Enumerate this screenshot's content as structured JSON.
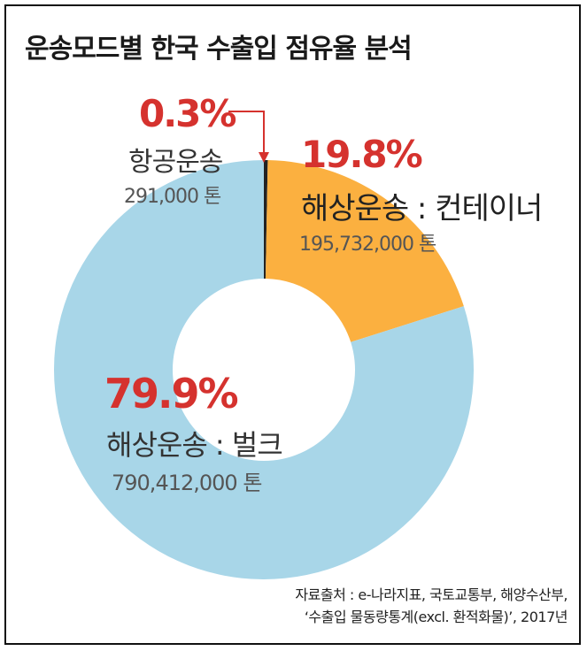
{
  "title": "운송모드별 한국 수출입 점유율 분석",
  "chart_data": {
    "type": "pie",
    "subtype": "donut",
    "slices": [
      {
        "label": "항공운송",
        "percent": 0.3,
        "value_text": "291,000 톤",
        "color": "#222222"
      },
      {
        "label": "해상운송 : 컨테이너",
        "percent": 19.8,
        "value_text": "195,732,000 톤",
        "color": "#fbb040"
      },
      {
        "label": "해상운송 : 벌크",
        "percent": 79.9,
        "value_text": "790,412,000 톤",
        "color": "#a8d6e8"
      }
    ],
    "percent_labels": [
      "0.3%",
      "19.8%",
      "79.9%"
    ]
  },
  "colors": {
    "accent": "#d5322e",
    "arrow": "#d5322e"
  },
  "source": {
    "line1": "자료출처 : e-나라지표, 국토교통부, 해양수산부,",
    "line2": "‘수출입 물동량통계(excl. 환적화물)’, 2017년"
  }
}
